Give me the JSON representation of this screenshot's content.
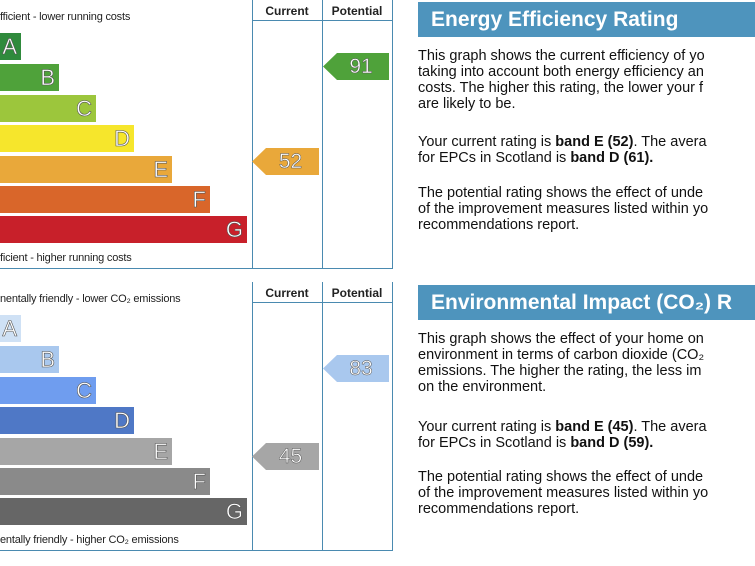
{
  "energy": {
    "col_current": "Current",
    "col_potential": "Potential",
    "top_caption": "fficient - lower running costs",
    "bottom_caption": "ficient - higher running costs",
    "bands": [
      "A",
      "B",
      "C",
      "D",
      "E",
      "F",
      "G"
    ],
    "colors": [
      "#2f8a3c",
      "#4fa23a",
      "#9cc63c",
      "#f6e62c",
      "#e9a83a",
      "#d9662a",
      "#c8202a"
    ],
    "current": "52",
    "potential": "91",
    "current_color": "#e9a83a",
    "potential_color": "#4fa23a",
    "title": "Energy Efficiency Rating",
    "p1": [
      "This graph shows the current efficiency of yo",
      "taking into account both energy efficiency an",
      "costs. The higher this rating, the lower your f",
      "are likely to be."
    ],
    "p2a": "Your current rating is ",
    "p2b": "band E (52)",
    "p2c": ". The avera",
    "p2d": "for EPCs in Scotland is ",
    "p2e": "band D (61).",
    "p3": [
      "The potential rating shows the effect of unde",
      "of the improvement measures listed within yo",
      "recommendations report."
    ]
  },
  "environment": {
    "col_current": "Current",
    "col_potential": "Potential",
    "top_caption": "nentally friendly - lower CO₂ emissions",
    "bottom_caption": "entally friendly - higher CO₂ emissions",
    "bands": [
      "A",
      "B",
      "C",
      "D",
      "E",
      "F",
      "G"
    ],
    "colors": [
      "#cfe1f5",
      "#a9c8ee",
      "#6f9def",
      "#4f78c6",
      "#a6a6a6",
      "#8a8a8a",
      "#666666"
    ],
    "current": "45",
    "potential": "83",
    "current_color": "#a6a6a6",
    "potential_color": "#a9c8ee",
    "title": "Environmental Impact (CO₂) R",
    "p1": [
      "This graph shows the effect of your home on",
      "environment in terms of carbon dioxide (CO₂",
      "emissions. The higher the rating, the less im",
      "on the environment."
    ],
    "p2a": "Your current rating is ",
    "p2b": "band E (45)",
    "p2c": ". The avera",
    "p2d": "for EPCs in Scotland is ",
    "p2e": "band D (59).",
    "p3": [
      "The potential rating shows the effect of unde",
      "of the improvement measures listed within yo",
      "recommendations report."
    ]
  }
}
